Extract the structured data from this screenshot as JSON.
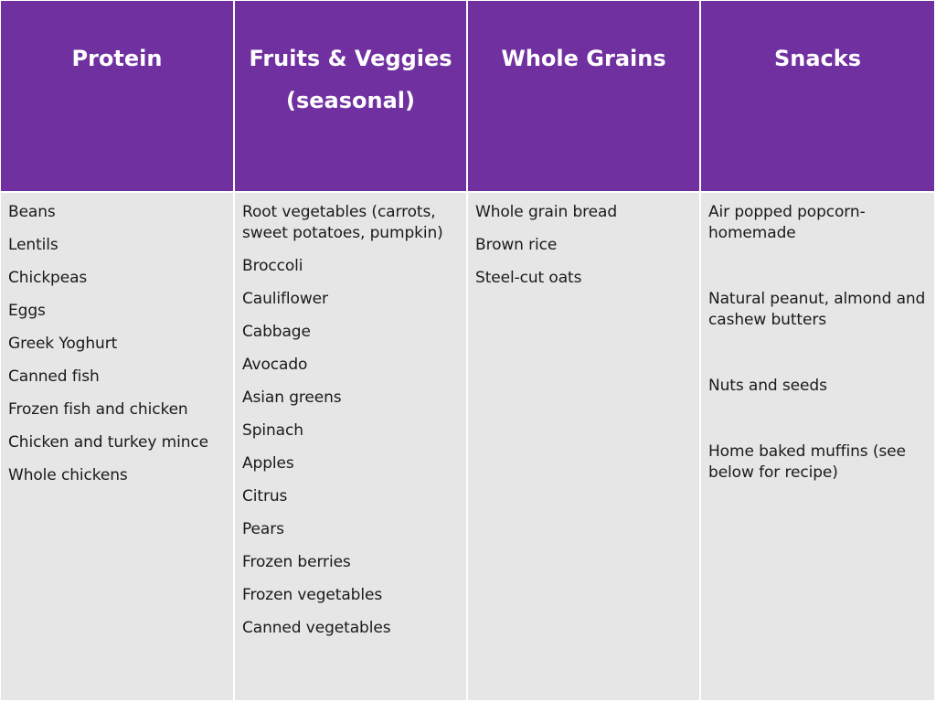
{
  "columns": [
    {
      "header": "Protein",
      "items": [
        "Beans",
        "Lentils",
        "Chickpeas",
        "Eggs",
        "Greek Yoghurt",
        "Canned fish",
        "Frozen fish and chicken",
        "Chicken and turkey mince",
        "Whole chickens"
      ]
    },
    {
      "header": "Fruits & Veggies\n(seasonal)",
      "items": [
        "Root vegetables (carrots, sweet potatoes, pumpkin)",
        "Broccoli",
        "Cauliflower",
        "Cabbage",
        "Avocado",
        "Asian greens",
        "Spinach",
        "Apples",
        "Citrus",
        "Pears",
        "Frozen berries",
        "Frozen vegetables",
        "Canned vegetables"
      ]
    },
    {
      "header": "Whole Grains",
      "items": [
        "Whole grain bread",
        "Brown rice",
        "Steel-cut oats"
      ]
    },
    {
      "header": "Snacks",
      "items": [
        "Air popped popcorn-homemade",
        "Natural peanut, almond and cashew butters",
        "Nuts and seeds",
        "Home baked muffins (see below for recipe)"
      ]
    }
  ],
  "colors": {
    "header_bg": "#7030a0",
    "header_text": "#ffffff",
    "body_bg": "#e7e6e6"
  }
}
